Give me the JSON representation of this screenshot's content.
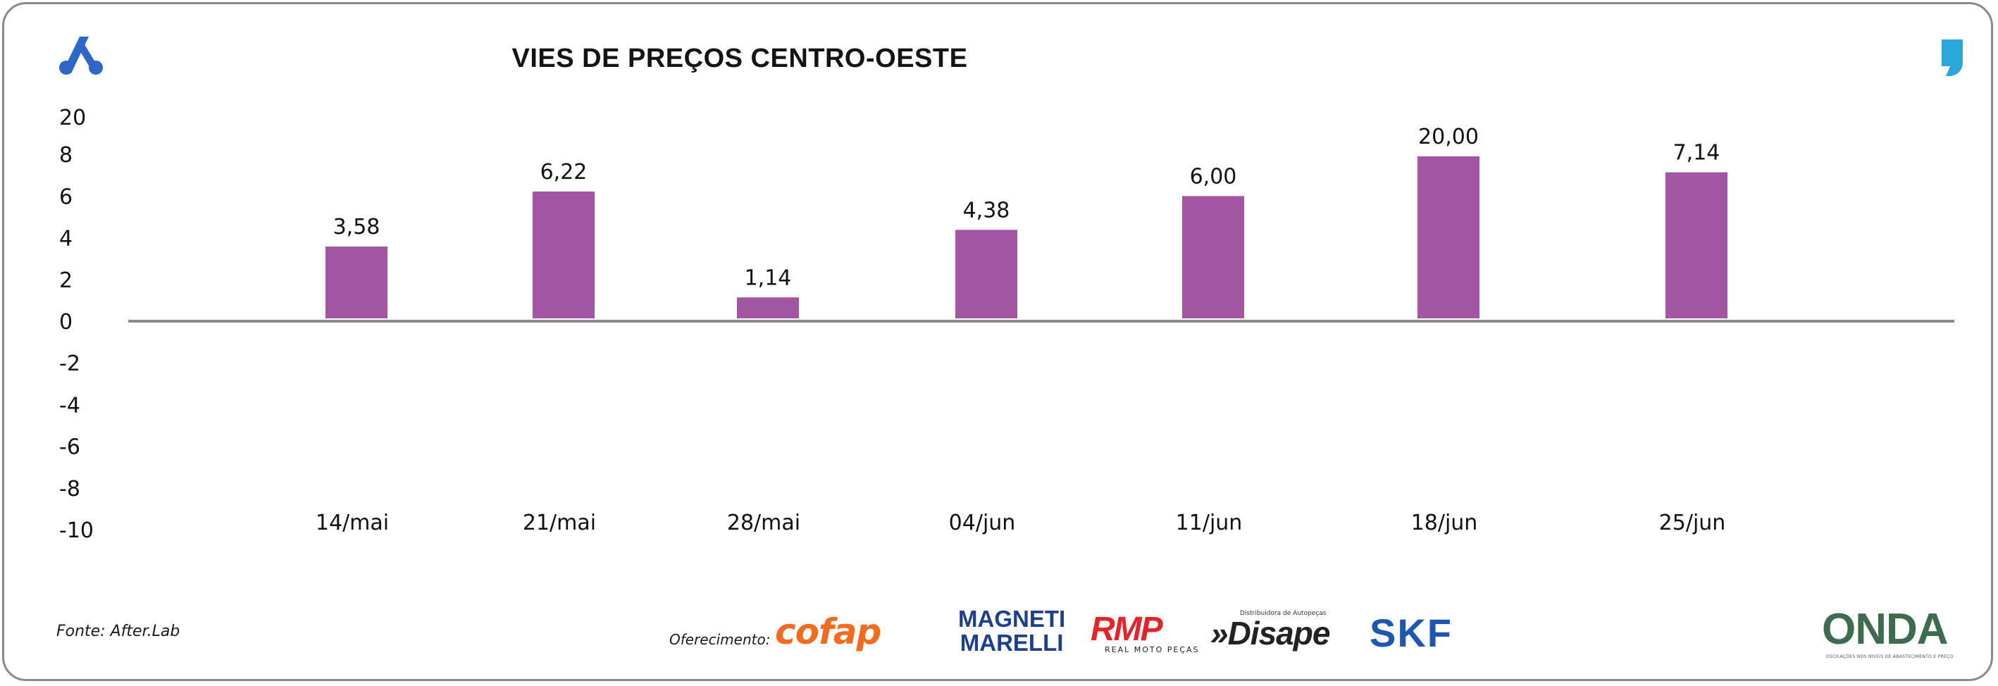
{
  "colors": {
    "bar": "#a155a2",
    "axis": "#8c8c8c",
    "frame": "#8a8a8a",
    "logo_left": "#2e67c7",
    "quote_mark": "#2aa8dc"
  },
  "icons": {
    "top_left": "brand-a-logo-icon",
    "top_right": "quote-mark-icon"
  },
  "chart_data": {
    "type": "bar",
    "title": "VIES DE PREÇOS CENTRO-OESTE",
    "categories": [
      "14/mai",
      "21/mai",
      "28/mai",
      "04/jun",
      "11/jun",
      "18/jun",
      "25/jun"
    ],
    "values": [
      3.58,
      6.22,
      1.14,
      4.38,
      6.0,
      20.0,
      7.14
    ],
    "value_labels": [
      "3,58",
      "6,22",
      "1,14",
      "4,38",
      "6,00",
      "20,00",
      "7,14"
    ],
    "y_ticks": [
      20,
      8,
      6,
      4,
      2,
      0,
      -2,
      -4,
      -6,
      -8,
      -10
    ],
    "y_tick_labels": [
      "20",
      "8",
      "6",
      "4",
      "2",
      "0",
      "-2",
      "-4",
      "-6",
      "-8",
      "-10"
    ],
    "axis_break": "scale jumps from 8 to 20 at the top tick",
    "xlabel": "",
    "ylabel": "",
    "grid": false,
    "legend": "none"
  },
  "footer": {
    "source": "Fonte: After.Lab",
    "sponsor_label": "Oferecimento:",
    "sponsors": {
      "cofap": "cofap",
      "magneti_line1": "MAGNETI",
      "magneti_line2": "MARELLI",
      "rmp": "RMP",
      "rmp_sub": "REAL MOTO PEÇAS",
      "disape_sub": "Distribuidora de Autopeças",
      "disape": "»Disape",
      "skf": "SKF"
    },
    "onda": "ONDA",
    "onda_sub": "OSCILAÇÕES NOS NÍVEIS DE ABASTECIMENTO E PREÇO"
  }
}
